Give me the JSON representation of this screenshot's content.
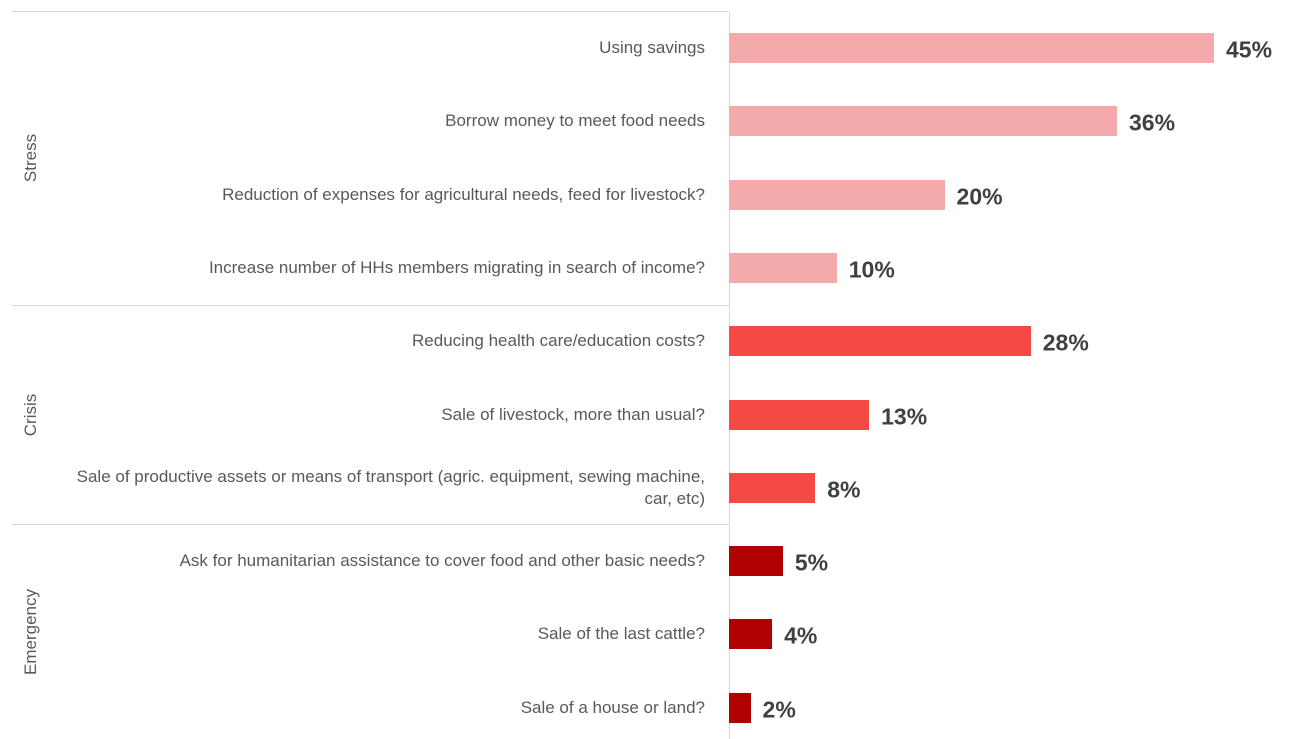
{
  "chart_data": {
    "type": "bar",
    "orientation": "horizontal",
    "groups": [
      {
        "name": "Stress",
        "color": "#f4aaaa",
        "categories": [
          "Using savings",
          "Borrow money to meet food needs",
          "Reduction of expenses for agricultural needs, feed for livestock?",
          "Increase number of HHs members migrating in search of income?"
        ],
        "values": [
          45,
          36,
          20,
          10
        ],
        "value_labels": [
          "45%",
          "36%",
          "20%",
          "10%"
        ]
      },
      {
        "name": "Crisis",
        "color": "#f44a43",
        "categories": [
          "Reducing health care/education costs?",
          "Sale of livestock, more than usual?",
          "Sale of productive assets or means of transport (agric. equipment, sewing machine, car, etc)"
        ],
        "values": [
          28,
          13,
          8
        ],
        "value_labels": [
          "28%",
          "13%",
          "8%"
        ]
      },
      {
        "name": "Emergency",
        "color": "#b00000",
        "categories": [
          "Ask for humanitarian assistance to cover food and other basic needs?",
          "Sale of the last cattle?",
          "Sale of a house or land?"
        ],
        "values": [
          5,
          4,
          2
        ],
        "value_labels": [
          "5%",
          "4%",
          "2%"
        ]
      }
    ]
  }
}
